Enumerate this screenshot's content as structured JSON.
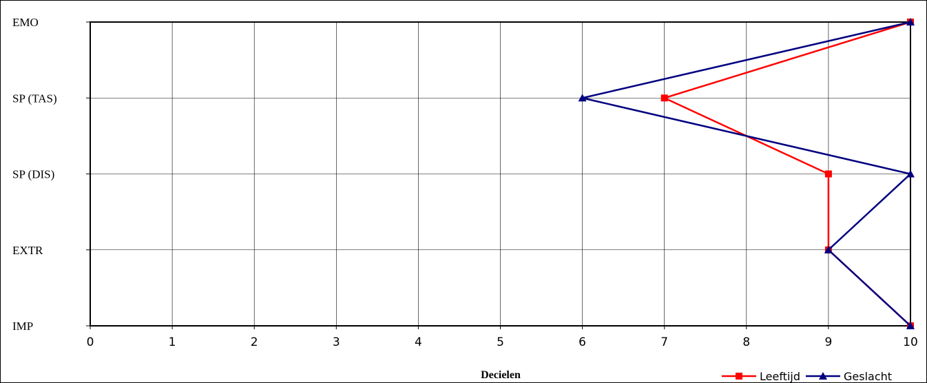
{
  "chart_data": {
    "type": "line",
    "title": "",
    "xlabel": "Decielen",
    "ylabel": "",
    "xlim": [
      0,
      10
    ],
    "x_ticks": [
      "0",
      "1",
      "2",
      "3",
      "4",
      "5",
      "6",
      "7",
      "8",
      "9",
      "10"
    ],
    "categories": [
      "EMO",
      "SP (TAS)",
      "SP (DIS)",
      "EXTR",
      "IMP"
    ],
    "grid": true,
    "legend_position": "bottom-right",
    "series": [
      {
        "name": "Leeftijd",
        "color": "#ff0000",
        "marker": "square",
        "values": [
          10,
          7,
          9,
          9,
          10
        ]
      },
      {
        "name": "Geslacht",
        "color": "#000080",
        "marker": "triangle",
        "values": [
          10,
          6,
          10,
          9,
          10
        ]
      }
    ]
  }
}
